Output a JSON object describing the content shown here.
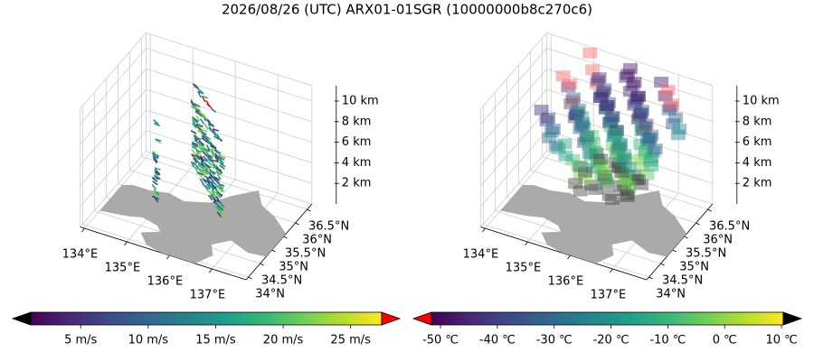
{
  "title": "2026/08/26 (UTC) ARX01-01SGR (10000000b8c270c6)",
  "chart_data": [
    {
      "type": "quiver3d",
      "xlim": [
        133.9,
        137.8
      ],
      "ylim": [
        33.9,
        36.7
      ],
      "zlim": [
        0,
        11.5
      ],
      "xticks": [
        {
          "value": 134,
          "label": "134°E"
        },
        {
          "value": 135,
          "label": "135°E"
        },
        {
          "value": 136,
          "label": "136°E"
        },
        {
          "value": 137,
          "label": "137°E"
        }
      ],
      "yticks": [
        {
          "value": 34,
          "label": "34°N"
        },
        {
          "value": 34.5,
          "label": "34.5°N"
        },
        {
          "value": 35,
          "label": "35°N"
        },
        {
          "value": 35.5,
          "label": "35.5°N"
        },
        {
          "value": 36,
          "label": "36°N"
        },
        {
          "value": 36.5,
          "label": "36.5°N"
        }
      ],
      "zticks": [
        {
          "value": 2,
          "label": "2 km"
        },
        {
          "value": 4,
          "label": "4 km"
        },
        {
          "value": 6,
          "label": "6 km"
        },
        {
          "value": 8,
          "label": "8 km"
        },
        {
          "value": 10,
          "label": "10 km"
        }
      ],
      "colorbar": {
        "cmap": "viridis",
        "lim": [
          1.3,
          27.3
        ],
        "under_color": "#000000",
        "over_color": "#ff0000",
        "ticks": [
          {
            "value": 5,
            "label": "5 m/s"
          },
          {
            "value": 10,
            "label": "10 m/s"
          },
          {
            "value": 15,
            "label": "15 m/s"
          },
          {
            "value": 20,
            "label": "20 m/s"
          },
          {
            "value": 25,
            "label": "25 m/s"
          }
        ]
      }
    },
    {
      "type": "voxel3d",
      "xlim": [
        133.9,
        137.8
      ],
      "ylim": [
        33.9,
        36.7
      ],
      "zlim": [
        0,
        11.5
      ],
      "xticks": [
        {
          "value": 134,
          "label": "134°E"
        },
        {
          "value": 135,
          "label": "135°E"
        },
        {
          "value": 136,
          "label": "136°E"
        },
        {
          "value": 137,
          "label": "137°E"
        }
      ],
      "yticks": [
        {
          "value": 34,
          "label": "34°N"
        },
        {
          "value": 34.5,
          "label": "34.5°N"
        },
        {
          "value": 35,
          "label": "35°N"
        },
        {
          "value": 35.5,
          "label": "35.5°N"
        },
        {
          "value": 36,
          "label": "36°N"
        },
        {
          "value": 36.5,
          "label": "36.5°N"
        }
      ],
      "zticks": [
        {
          "value": 2,
          "label": "2 km"
        },
        {
          "value": 4,
          "label": "4 km"
        },
        {
          "value": 6,
          "label": "6 km"
        },
        {
          "value": 8,
          "label": "8 km"
        },
        {
          "value": 10,
          "label": "10 km"
        }
      ],
      "colorbar": {
        "cmap": "viridis",
        "lim": [
          -51.6,
          10.3
        ],
        "under_color": "#ff0000",
        "over_color": "#000000",
        "ticks": [
          {
            "value": -50,
            "label": "-50 ℃"
          },
          {
            "value": -40,
            "label": "-40 ℃"
          },
          {
            "value": -30,
            "label": "-30 ℃"
          },
          {
            "value": -20,
            "label": "-20 ℃"
          },
          {
            "value": -10,
            "label": "-10 ℃"
          },
          {
            "value": 0,
            "label": "0 ℃"
          },
          {
            "value": 10,
            "label": "10 ℃"
          }
        ]
      }
    }
  ]
}
